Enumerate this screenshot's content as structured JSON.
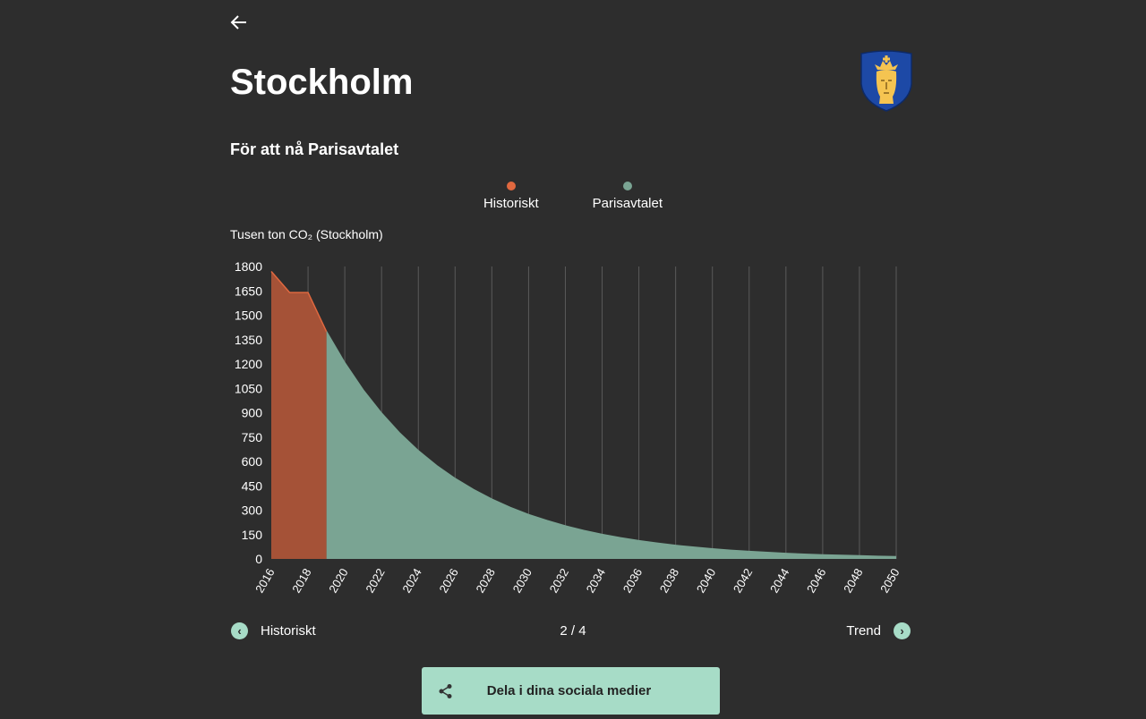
{
  "header": {
    "title": "Stockholm",
    "back_icon": "arrow-left-icon",
    "crest_icon": "stockholm-coat-of-arms"
  },
  "section_title": "För att nå Parisavtalet",
  "chart_data": {
    "type": "area",
    "ylabel": "Tusen ton CO₂ (Stockholm)",
    "xlabel": "",
    "ylim": [
      0,
      1800
    ],
    "xlim": [
      2016,
      2050
    ],
    "yticks": [
      "0",
      "150",
      "300",
      "450",
      "600",
      "750",
      "900",
      "1050",
      "1200",
      "1350",
      "1500",
      "1650",
      "1800"
    ],
    "xticks": [
      "2016",
      "2018",
      "2020",
      "2022",
      "2024",
      "2026",
      "2028",
      "2030",
      "2032",
      "2034",
      "2036",
      "2038",
      "2040",
      "2042",
      "2044",
      "2046",
      "2048",
      "2050"
    ],
    "grid": "vertical",
    "legend_position": "top-center",
    "series": [
      {
        "name": "Historiskt",
        "color": "#e0683f",
        "fill": "#a55237",
        "x": [
          2016,
          2017,
          2018,
          2019
        ],
        "values": [
          1770,
          1640,
          1640,
          1400
        ]
      },
      {
        "name": "Parisavtalet",
        "color": "#7aa493",
        "fill": "#7aa493",
        "x": [
          2019,
          2020,
          2021,
          2022,
          2023,
          2024,
          2025,
          2026,
          2027,
          2028,
          2029,
          2030,
          2031,
          2032,
          2033,
          2034,
          2035,
          2036,
          2037,
          2038,
          2039,
          2040,
          2041,
          2042,
          2043,
          2044,
          2045,
          2046,
          2047,
          2048,
          2049,
          2050
        ],
        "values": [
          1400,
          1207,
          1040,
          897,
          773,
          666,
          574,
          495,
          427,
          368,
          317,
          273,
          236,
          203,
          175,
          151,
          130,
          112,
          97,
          83,
          72,
          62,
          53,
          46,
          40,
          34,
          29,
          25,
          22,
          19,
          16,
          14
        ]
      }
    ]
  },
  "pager": {
    "prev_label": "Historiskt",
    "page": "2 / 4",
    "next_label": "Trend"
  },
  "share": {
    "label": "Dela i dina sociala medier",
    "icon": "share-icon"
  }
}
